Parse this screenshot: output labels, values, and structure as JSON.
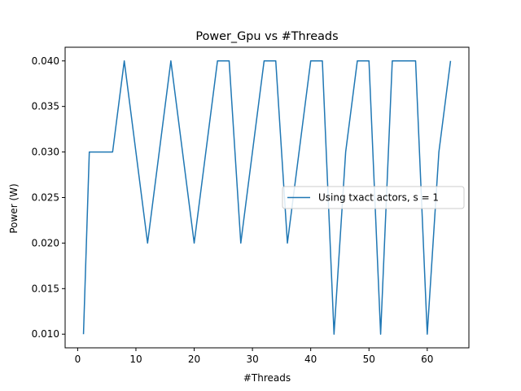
{
  "chart_data": {
    "type": "line",
    "title": "Power_Gpu vs #Threads",
    "xlabel": "#Threads",
    "ylabel": "Power (W)",
    "xlim": [
      -2.15,
      67.15
    ],
    "ylim": [
      0.0085,
      0.0415
    ],
    "xticks": [
      0,
      10,
      20,
      30,
      40,
      50,
      60
    ],
    "xtick_labels": [
      "0",
      "10",
      "20",
      "30",
      "40",
      "50",
      "60"
    ],
    "yticks": [
      0.01,
      0.015,
      0.02,
      0.025,
      0.03,
      0.035,
      0.04
    ],
    "ytick_labels": [
      "0.010",
      "0.015",
      "0.020",
      "0.025",
      "0.030",
      "0.035",
      "0.040"
    ],
    "grid": false,
    "legend_position": "center-right",
    "series": [
      {
        "name": "Using txact actors, s = 1",
        "color": "#1f77b4",
        "x": [
          1,
          2,
          4,
          6,
          8,
          12,
          16,
          20,
          24,
          26,
          28,
          32,
          34,
          36,
          40,
          42,
          44,
          46,
          48,
          50,
          52,
          54,
          56,
          58,
          60,
          62,
          64
        ],
        "y": [
          0.01,
          0.03,
          0.03,
          0.03,
          0.04,
          0.02,
          0.04,
          0.02,
          0.04,
          0.04,
          0.02,
          0.04,
          0.04,
          0.02,
          0.04,
          0.04,
          0.01,
          0.03,
          0.04,
          0.04,
          0.01,
          0.04,
          0.04,
          0.04,
          0.01,
          0.03,
          0.04
        ]
      }
    ]
  }
}
